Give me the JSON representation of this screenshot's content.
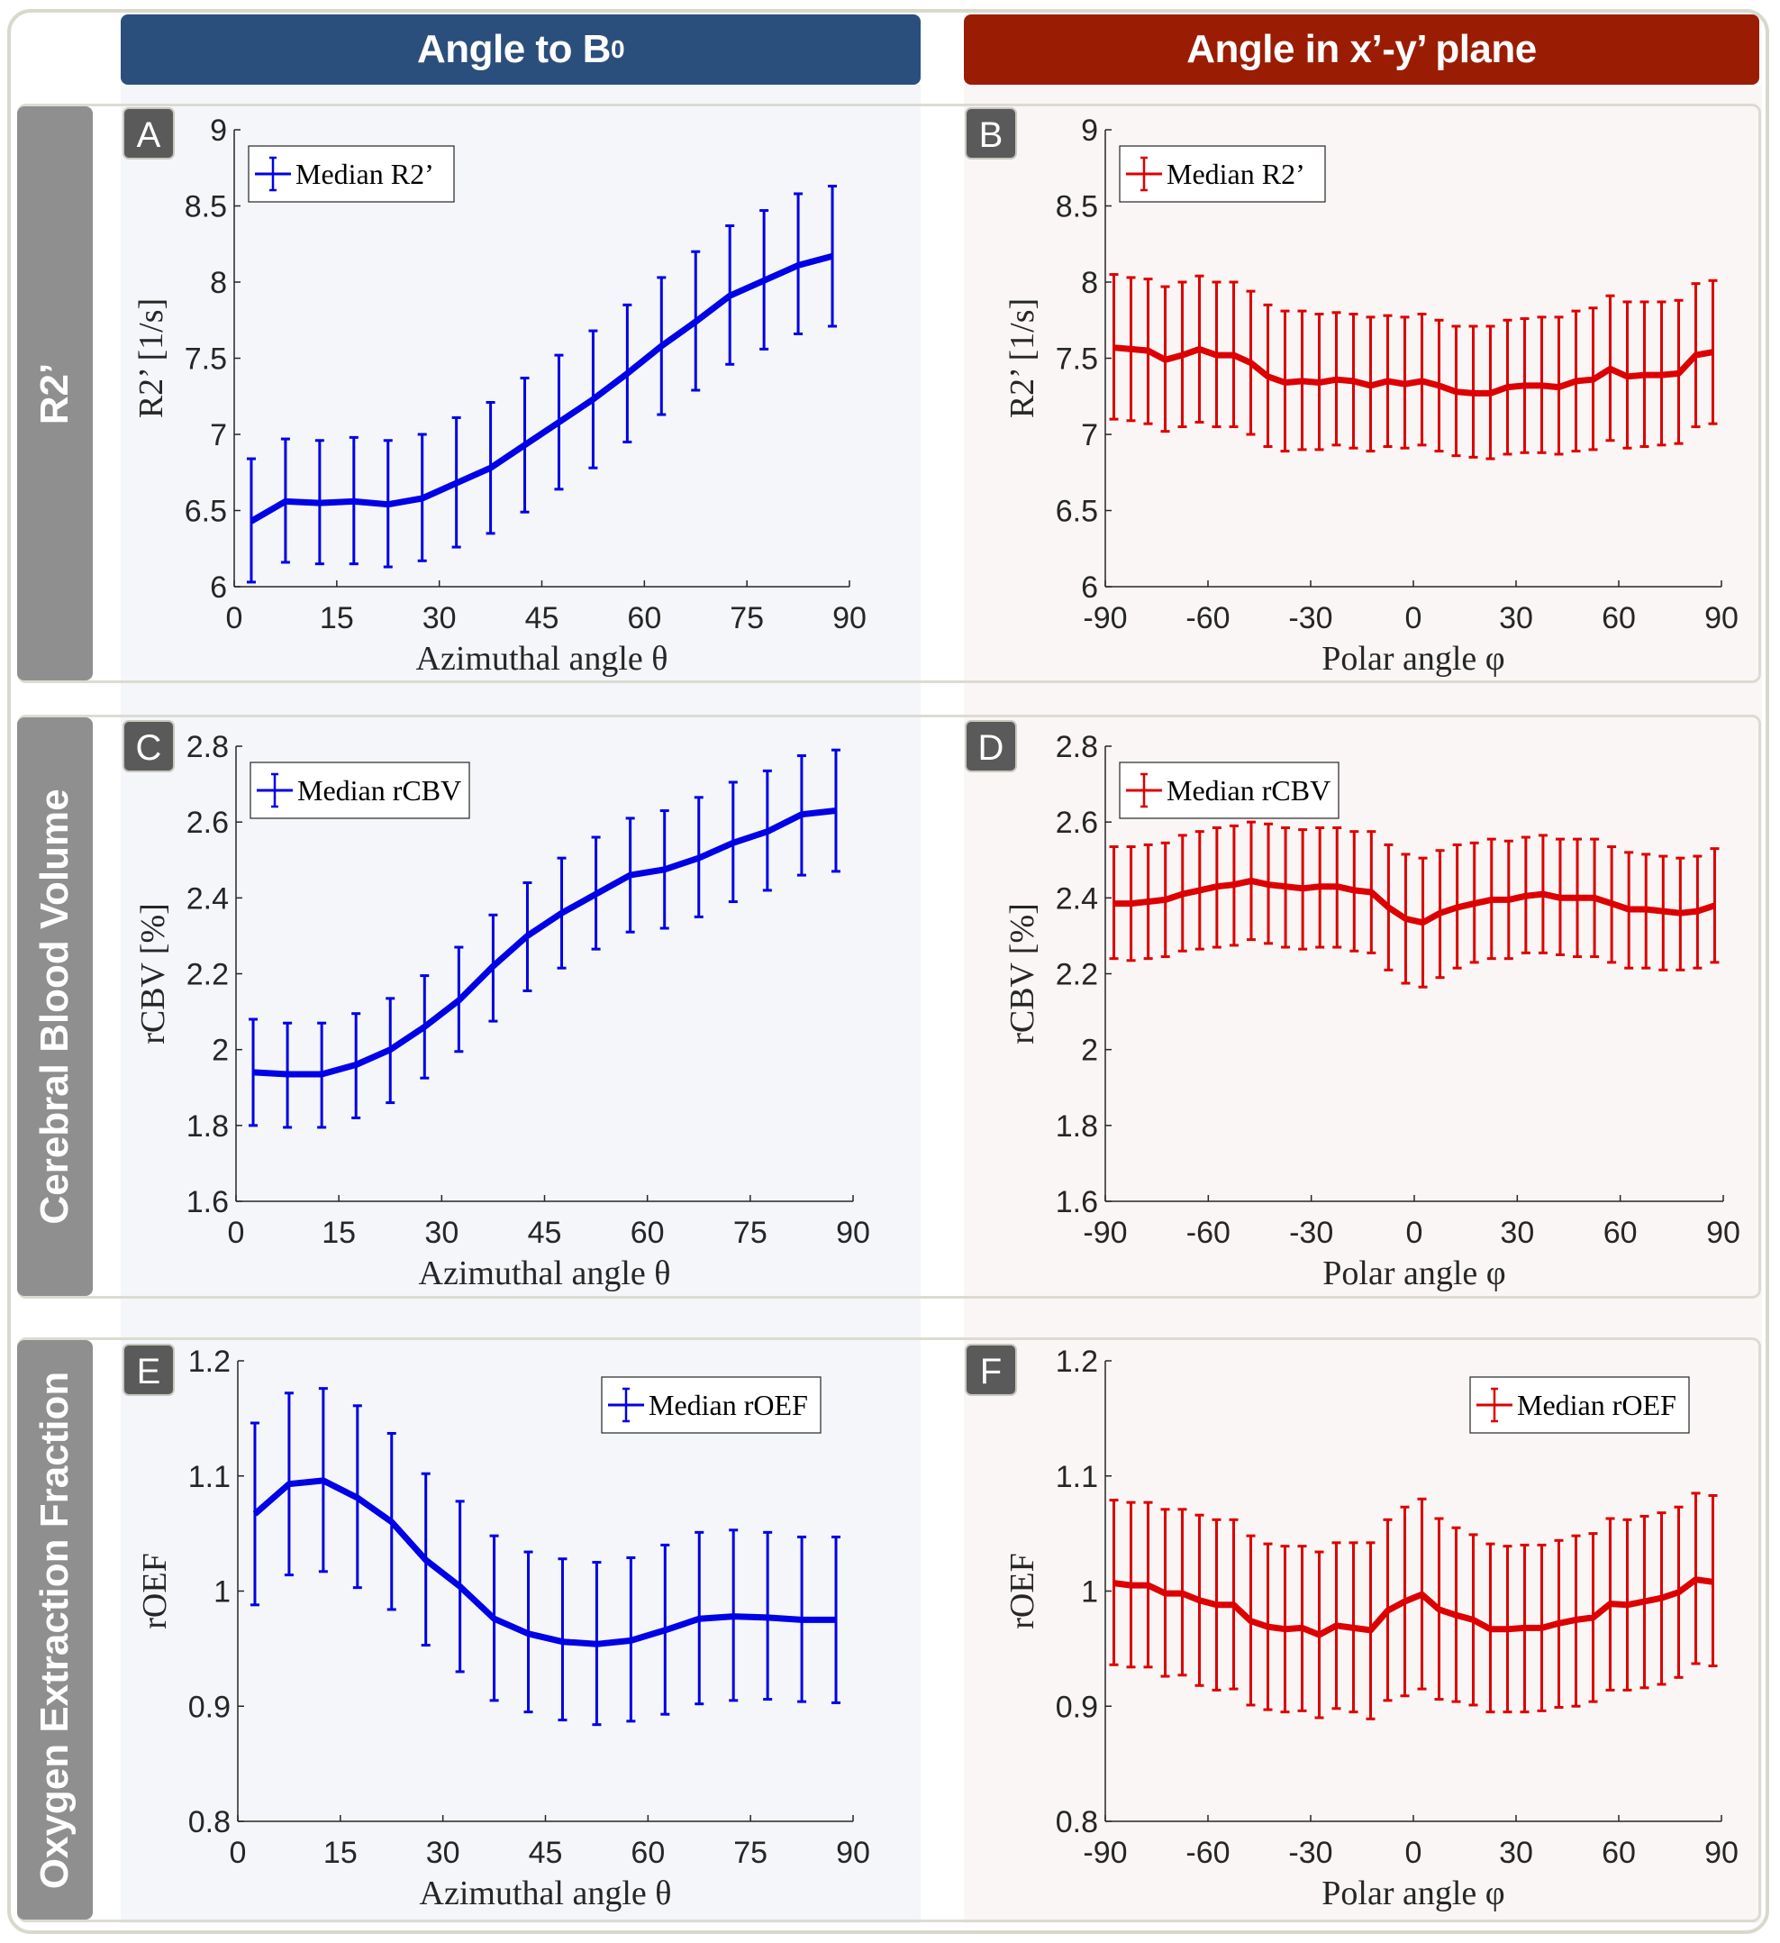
{
  "columns": [
    {
      "title": "Angle to B",
      "subscript": "0",
      "color": "#2b4f7c"
    },
    {
      "title": "Angle in x’-y’ plane",
      "color": "#9a1d03"
    }
  ],
  "rows": [
    {
      "label": "R2’"
    },
    {
      "label": "Cerebral Blood Volume"
    },
    {
      "label": "Oxygen Extraction Fraction"
    }
  ],
  "chart_data": [
    {
      "panel": "A",
      "type": "line",
      "error_bars": true,
      "series_color": "#0000e6",
      "legend": "Median R2’",
      "legend_position": "top-left",
      "xlabel": "Azimuthal angle θ",
      "ylabel": "R2’ [1/s]",
      "xlim": [
        0,
        90
      ],
      "ylim": [
        6,
        9
      ],
      "xticks": [
        "0",
        "15",
        "30",
        "45",
        "60",
        "75",
        "90"
      ],
      "yticks": [
        "6",
        "6.5",
        "7",
        "7.5",
        "8",
        "8.5",
        "9"
      ],
      "x": [
        2.5,
        7.5,
        12.5,
        17.5,
        22.5,
        27.5,
        32.5,
        37.5,
        42.5,
        47.5,
        52.5,
        57.5,
        62.5,
        67.5,
        72.5,
        77.5,
        82.5,
        87.5
      ],
      "y": [
        6.43,
        6.56,
        6.55,
        6.56,
        6.54,
        6.58,
        6.68,
        6.78,
        6.93,
        7.08,
        7.23,
        7.4,
        7.58,
        7.74,
        7.91,
        8.01,
        8.11,
        8.17
      ],
      "lower": [
        6.03,
        6.16,
        6.15,
        6.15,
        6.13,
        6.17,
        6.26,
        6.35,
        6.49,
        6.64,
        6.78,
        6.95,
        7.13,
        7.29,
        7.46,
        7.56,
        7.66,
        7.71
      ],
      "upper": [
        6.84,
        6.97,
        6.96,
        6.98,
        6.96,
        7.0,
        7.11,
        7.21,
        7.37,
        7.52,
        7.68,
        7.85,
        8.03,
        8.2,
        8.37,
        8.47,
        8.58,
        8.63
      ]
    },
    {
      "panel": "B",
      "type": "line",
      "error_bars": true,
      "series_color": "#dd0000",
      "legend": "Median R2’",
      "legend_position": "top-left",
      "xlabel": "Polar angle φ",
      "ylabel": "R2’ [1/s]",
      "xlim": [
        -90,
        90
      ],
      "ylim": [
        6,
        9
      ],
      "xticks": [
        "-90",
        "-60",
        "-30",
        "0",
        "30",
        "60",
        "90"
      ],
      "yticks": [
        "6",
        "6.5",
        "7",
        "7.5",
        "8",
        "8.5",
        "9"
      ],
      "x": [
        -87.5,
        -82.5,
        -77.5,
        -72.5,
        -67.5,
        -62.5,
        -57.5,
        -52.5,
        -47.5,
        -42.5,
        -37.5,
        -32.5,
        -27.5,
        -22.5,
        -17.5,
        -12.5,
        -7.5,
        -2.5,
        2.5,
        7.5,
        12.5,
        17.5,
        22.5,
        27.5,
        32.5,
        37.5,
        42.5,
        47.5,
        52.5,
        57.5,
        62.5,
        67.5,
        72.5,
        77.5,
        82.5,
        87.5
      ],
      "y": [
        7.57,
        7.56,
        7.55,
        7.49,
        7.52,
        7.56,
        7.52,
        7.52,
        7.47,
        7.38,
        7.34,
        7.35,
        7.34,
        7.36,
        7.35,
        7.32,
        7.35,
        7.33,
        7.35,
        7.32,
        7.28,
        7.27,
        7.27,
        7.31,
        7.32,
        7.32,
        7.31,
        7.35,
        7.36,
        7.43,
        7.38,
        7.39,
        7.39,
        7.4,
        7.52,
        7.54
      ],
      "lower": [
        7.1,
        7.09,
        7.07,
        7.02,
        7.05,
        7.08,
        7.05,
        7.05,
        7.0,
        6.92,
        6.89,
        6.9,
        6.9,
        6.93,
        6.91,
        6.89,
        6.92,
        6.91,
        6.93,
        6.89,
        6.86,
        6.85,
        6.84,
        6.87,
        6.88,
        6.88,
        6.87,
        6.89,
        6.9,
        6.96,
        6.91,
        6.92,
        6.93,
        6.94,
        7.05,
        7.07
      ],
      "upper": [
        8.05,
        8.03,
        8.02,
        7.97,
        8.0,
        8.04,
        8.0,
        8.0,
        7.94,
        7.85,
        7.81,
        7.81,
        7.79,
        7.8,
        7.79,
        7.77,
        7.78,
        7.77,
        7.79,
        7.75,
        7.71,
        7.71,
        7.71,
        7.75,
        7.76,
        7.77,
        7.77,
        7.81,
        7.83,
        7.91,
        7.87,
        7.87,
        7.87,
        7.88,
        7.99,
        8.01
      ]
    },
    {
      "panel": "C",
      "type": "line",
      "error_bars": true,
      "series_color": "#0000e6",
      "legend": "Median rCBV",
      "legend_position": "top-left",
      "xlabel": "Azimuthal angle θ",
      "ylabel": "rCBV [%]",
      "xlim": [
        0,
        90
      ],
      "ylim": [
        1.6,
        2.8
      ],
      "xticks": [
        "0",
        "15",
        "30",
        "45",
        "60",
        "75",
        "90"
      ],
      "yticks": [
        "1.6",
        "1.8",
        "2",
        "2.2",
        "2.4",
        "2.6",
        "2.8"
      ],
      "x": [
        2.5,
        7.5,
        12.5,
        17.5,
        22.5,
        27.5,
        32.5,
        37.5,
        42.5,
        47.5,
        52.5,
        57.5,
        62.5,
        67.5,
        72.5,
        77.5,
        82.5,
        87.5
      ],
      "y": [
        1.94,
        1.935,
        1.935,
        1.96,
        2.0,
        2.06,
        2.13,
        2.22,
        2.3,
        2.36,
        2.41,
        2.46,
        2.475,
        2.505,
        2.545,
        2.575,
        2.62,
        2.63
      ],
      "lower": [
        1.8,
        1.795,
        1.795,
        1.82,
        1.86,
        1.925,
        1.995,
        2.075,
        2.155,
        2.215,
        2.265,
        2.31,
        2.32,
        2.35,
        2.39,
        2.42,
        2.46,
        2.47
      ],
      "upper": [
        2.08,
        2.07,
        2.07,
        2.095,
        2.135,
        2.195,
        2.27,
        2.355,
        2.44,
        2.505,
        2.56,
        2.61,
        2.63,
        2.665,
        2.705,
        2.735,
        2.775,
        2.79
      ]
    },
    {
      "panel": "D",
      "type": "line",
      "error_bars": true,
      "series_color": "#dd0000",
      "legend": "Median rCBV",
      "legend_position": "top-left",
      "xlabel": "Polar angle φ",
      "ylabel": "rCBV [%]",
      "xlim": [
        -90,
        90
      ],
      "ylim": [
        1.6,
        2.8
      ],
      "xticks": [
        "-90",
        "-60",
        "-30",
        "0",
        "30",
        "60",
        "90"
      ],
      "yticks": [
        "1.6",
        "1.8",
        "2",
        "2.2",
        "2.4",
        "2.6",
        "2.8"
      ],
      "x": [
        -87.5,
        -82.5,
        -77.5,
        -72.5,
        -67.5,
        -62.5,
        -57.5,
        -52.5,
        -47.5,
        -42.5,
        -37.5,
        -32.5,
        -27.5,
        -22.5,
        -17.5,
        -12.5,
        -7.5,
        -2.5,
        2.5,
        7.5,
        12.5,
        17.5,
        22.5,
        27.5,
        32.5,
        37.5,
        42.5,
        47.5,
        52.5,
        57.5,
        62.5,
        67.5,
        72.5,
        77.5,
        82.5,
        87.5
      ],
      "y": [
        2.385,
        2.385,
        2.39,
        2.395,
        2.41,
        2.42,
        2.43,
        2.435,
        2.445,
        2.435,
        2.43,
        2.425,
        2.43,
        2.43,
        2.42,
        2.415,
        2.375,
        2.345,
        2.335,
        2.36,
        2.375,
        2.385,
        2.395,
        2.395,
        2.405,
        2.41,
        2.4,
        2.4,
        2.4,
        2.385,
        2.37,
        2.37,
        2.365,
        2.36,
        2.365,
        2.38
      ],
      "lower": [
        2.24,
        2.235,
        2.24,
        2.245,
        2.26,
        2.265,
        2.27,
        2.275,
        2.29,
        2.28,
        2.27,
        2.265,
        2.27,
        2.27,
        2.26,
        2.255,
        2.21,
        2.175,
        2.165,
        2.19,
        2.215,
        2.23,
        2.24,
        2.24,
        2.255,
        2.255,
        2.25,
        2.245,
        2.245,
        2.23,
        2.215,
        2.215,
        2.21,
        2.21,
        2.215,
        2.23
      ],
      "upper": [
        2.535,
        2.535,
        2.54,
        2.545,
        2.565,
        2.575,
        2.585,
        2.59,
        2.6,
        2.595,
        2.585,
        2.58,
        2.585,
        2.585,
        2.575,
        2.575,
        2.54,
        2.515,
        2.505,
        2.525,
        2.54,
        2.545,
        2.555,
        2.55,
        2.56,
        2.565,
        2.555,
        2.555,
        2.555,
        2.535,
        2.52,
        2.515,
        2.51,
        2.505,
        2.51,
        2.53
      ]
    },
    {
      "panel": "E",
      "type": "line",
      "error_bars": true,
      "series_color": "#0000e6",
      "legend": "Median rOEF",
      "legend_position": "top-right",
      "xlabel": "Azimuthal angle θ",
      "ylabel": "rOEF",
      "xlim": [
        0,
        90
      ],
      "ylim": [
        0.8,
        1.2
      ],
      "xticks": [
        "0",
        "15",
        "30",
        "45",
        "60",
        "75",
        "90"
      ],
      "yticks": [
        "0.8",
        "0.9",
        "1",
        "1.1",
        "1.2"
      ],
      "x": [
        2.5,
        7.5,
        12.5,
        17.5,
        22.5,
        27.5,
        32.5,
        37.5,
        42.5,
        47.5,
        52.5,
        57.5,
        62.5,
        67.5,
        72.5,
        77.5,
        82.5,
        87.5
      ],
      "y": [
        1.067,
        1.093,
        1.096,
        1.081,
        1.06,
        1.027,
        1.004,
        0.976,
        0.963,
        0.956,
        0.954,
        0.957,
        0.966,
        0.976,
        0.978,
        0.977,
        0.975,
        0.975
      ],
      "lower": [
        0.988,
        1.014,
        1.017,
        1.003,
        0.984,
        0.953,
        0.93,
        0.905,
        0.895,
        0.888,
        0.884,
        0.887,
        0.893,
        0.902,
        0.905,
        0.906,
        0.904,
        0.903
      ],
      "upper": [
        1.146,
        1.172,
        1.176,
        1.161,
        1.137,
        1.102,
        1.078,
        1.048,
        1.034,
        1.028,
        1.025,
        1.029,
        1.04,
        1.051,
        1.053,
        1.051,
        1.047,
        1.047
      ]
    },
    {
      "panel": "F",
      "type": "line",
      "error_bars": true,
      "series_color": "#dd0000",
      "legend": "Median rOEF",
      "legend_position": "top-right",
      "xlabel": "Polar angle φ",
      "ylabel": "rOEF",
      "xlim": [
        -90,
        90
      ],
      "ylim": [
        0.8,
        1.2
      ],
      "xticks": [
        "-90",
        "-60",
        "-30",
        "0",
        "30",
        "60",
        "90"
      ],
      "yticks": [
        "0.8",
        "0.9",
        "1",
        "1.1",
        "1.2"
      ],
      "x": [
        -87.5,
        -82.5,
        -77.5,
        -72.5,
        -67.5,
        -62.5,
        -57.5,
        -52.5,
        -47.5,
        -42.5,
        -37.5,
        -32.5,
        -27.5,
        -22.5,
        -17.5,
        -12.5,
        -7.5,
        -2.5,
        2.5,
        7.5,
        12.5,
        17.5,
        22.5,
        27.5,
        32.5,
        37.5,
        42.5,
        47.5,
        52.5,
        57.5,
        62.5,
        67.5,
        72.5,
        77.5,
        82.5,
        87.5
      ],
      "y": [
        1.007,
        1.005,
        1.005,
        0.998,
        0.998,
        0.992,
        0.988,
        0.988,
        0.974,
        0.969,
        0.967,
        0.968,
        0.962,
        0.97,
        0.968,
        0.966,
        0.983,
        0.991,
        0.997,
        0.984,
        0.979,
        0.975,
        0.967,
        0.967,
        0.968,
        0.968,
        0.972,
        0.975,
        0.977,
        0.989,
        0.988,
        0.991,
        0.994,
        0.999,
        1.01,
        1.008
      ],
      "lower": [
        0.936,
        0.934,
        0.934,
        0.926,
        0.927,
        0.918,
        0.914,
        0.915,
        0.901,
        0.897,
        0.895,
        0.896,
        0.89,
        0.898,
        0.895,
        0.889,
        0.905,
        0.909,
        0.915,
        0.906,
        0.904,
        0.901,
        0.895,
        0.895,
        0.895,
        0.896,
        0.899,
        0.9,
        0.904,
        0.914,
        0.914,
        0.916,
        0.919,
        0.925,
        0.937,
        0.935
      ],
      "upper": [
        1.079,
        1.077,
        1.077,
        1.071,
        1.071,
        1.066,
        1.062,
        1.062,
        1.048,
        1.041,
        1.039,
        1.039,
        1.034,
        1.042,
        1.042,
        1.042,
        1.062,
        1.073,
        1.08,
        1.063,
        1.055,
        1.049,
        1.041,
        1.039,
        1.04,
        1.04,
        1.044,
        1.048,
        1.05,
        1.063,
        1.062,
        1.065,
        1.068,
        1.073,
        1.085,
        1.083
      ]
    }
  ]
}
